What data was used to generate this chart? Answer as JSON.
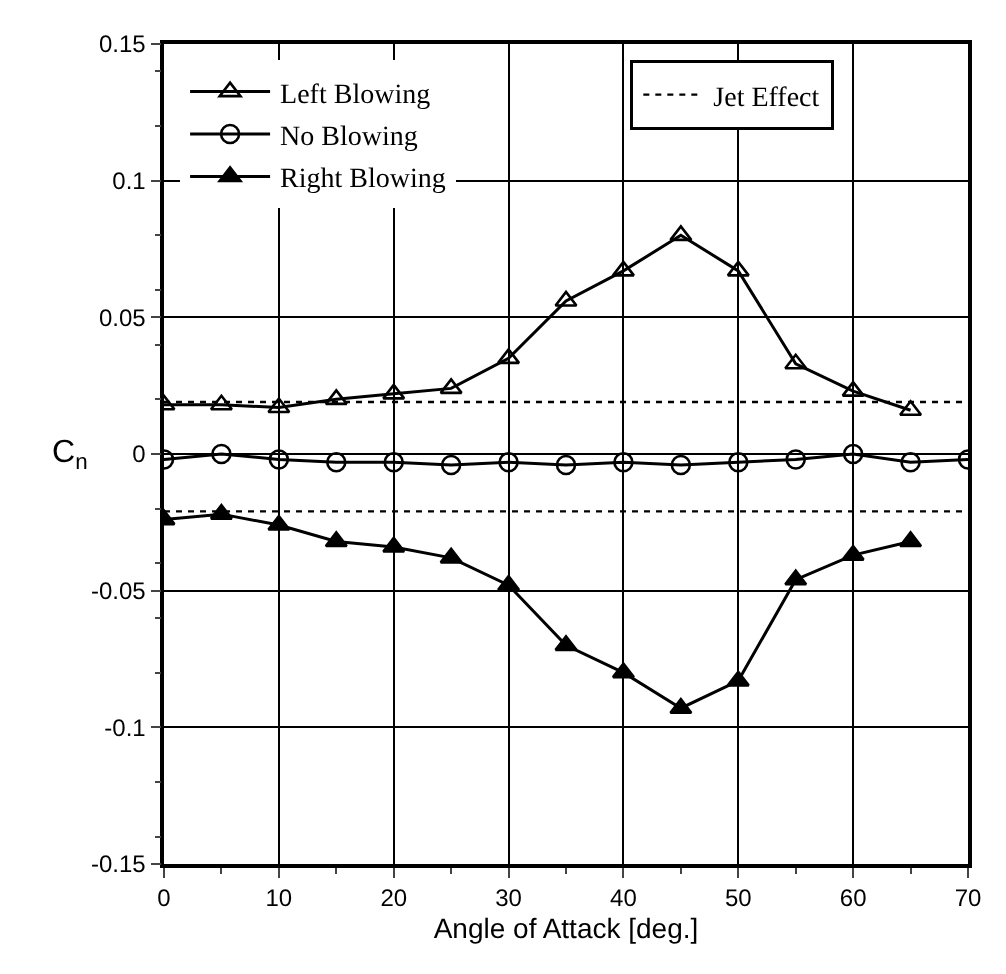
{
  "chart_data": {
    "type": "line",
    "xlabel": "Angle of Attack [deg.]",
    "ylabel": "C$_{n}$",
    "x": [
      0,
      5,
      10,
      15,
      20,
      25,
      30,
      35,
      40,
      45,
      50,
      55,
      60,
      65
    ],
    "series": [
      {
        "name": "Left Blowing",
        "color": "#000000",
        "marker": "triangle-open",
        "values": [
          0.018,
          0.018,
          0.017,
          0.02,
          0.022,
          0.024,
          0.035,
          0.056,
          0.067,
          0.08,
          0.067,
          0.033,
          0.023,
          0.016
        ]
      },
      {
        "name": "No Blowing",
        "color": "#000000",
        "marker": "circle-open",
        "x": [
          0,
          5,
          10,
          15,
          20,
          25,
          30,
          35,
          40,
          45,
          50,
          55,
          60,
          65,
          70
        ],
        "values": [
          -0.002,
          0,
          -0.002,
          -0.003,
          -0.003,
          -0.004,
          -0.003,
          -0.004,
          -0.003,
          -0.004,
          -0.003,
          -0.002,
          0,
          -0.003,
          -0.002
        ]
      },
      {
        "name": "Right Blowing",
        "color": "#000000",
        "marker": "triangle",
        "values": [
          -0.024,
          -0.022,
          -0.026,
          -0.032,
          -0.034,
          -0.038,
          -0.048,
          -0.07,
          -0.08,
          -0.093,
          -0.083,
          -0.046,
          -0.037,
          -0.032
        ]
      },
      {
        "name": "Jet Effect",
        "color": "#000000",
        "marker": "none",
        "line_style": "dotted",
        "x": [
          0,
          70
        ],
        "values": [
          0.019,
          0.019
        ]
      },
      {
        "color": "#000000",
        "marker": "none",
        "line_style": "dotted",
        "x": [
          0,
          70
        ],
        "values": [
          -0.021,
          -0.021
        ]
      }
    ],
    "xlim": [
      0,
      70
    ],
    "xticks": [
      0,
      10,
      20,
      30,
      40,
      50,
      60,
      70
    ],
    "ylim": [
      -0.15,
      0.15
    ],
    "yticks": [
      -0.15,
      -0.1,
      -0.05,
      0,
      0.05,
      0.1,
      0.15
    ],
    "grid": true,
    "legend": "top left",
    "line_style": "solid"
  }
}
